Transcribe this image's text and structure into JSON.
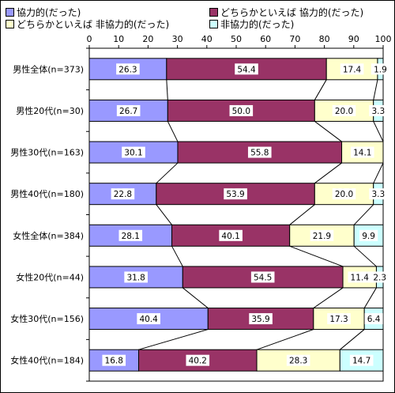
{
  "chart_data": {
    "type": "bar",
    "orientation": "horizontal",
    "stacked": true,
    "categories": [
      "男性全体(n=373)",
      "男性20代(n=30)",
      "男性30代(n=163)",
      "男性40代(n=180)",
      "女性全体(n=384)",
      "女性20代(n=44)",
      "女性30代(n=156)",
      "女性40代(n=184)"
    ],
    "series": [
      {
        "name": "協力的(だった)",
        "color": "#9999ff",
        "values": [
          26.3,
          26.7,
          30.1,
          22.8,
          28.1,
          31.8,
          40.4,
          16.8
        ]
      },
      {
        "name": "どちらかといえば 協力的(だった)",
        "color": "#993366",
        "values": [
          54.4,
          50.0,
          55.8,
          53.9,
          40.1,
          54.5,
          35.9,
          40.2
        ]
      },
      {
        "name": "どちらかといえば 非協力的(だった)",
        "color": "#ffffcc",
        "values": [
          17.4,
          20.0,
          14.1,
          20.0,
          21.9,
          11.4,
          17.3,
          28.3
        ]
      },
      {
        "name": "非協力的(だった)",
        "color": "#ccffff",
        "values": [
          1.9,
          3.3,
          null,
          3.3,
          9.9,
          2.3,
          6.4,
          14.7
        ]
      }
    ],
    "labels": [
      [
        "26.3",
        "54.4",
        "17.4",
        "1.9"
      ],
      [
        "26.7",
        "50.0",
        "20.0",
        "3.3"
      ],
      [
        "30.1",
        "55.8",
        "14.1",
        ""
      ],
      [
        "22.8",
        "53.9",
        "20.0",
        "3.3"
      ],
      [
        "28.1",
        "40.1",
        "21.9",
        "9.9"
      ],
      [
        "31.8",
        "54.5",
        "11.4",
        "2.3"
      ],
      [
        "40.4",
        "35.9",
        "17.3",
        "6.4"
      ],
      [
        "16.8",
        "40.2",
        "28.3",
        "14.7"
      ]
    ],
    "xticks": [
      "0",
      "10",
      "20",
      "30",
      "40",
      "50",
      "60",
      "70",
      "80",
      "90",
      "100"
    ],
    "xlim": [
      0,
      100
    ],
    "grid": false,
    "series_lines": true,
    "legend_position": "top"
  }
}
